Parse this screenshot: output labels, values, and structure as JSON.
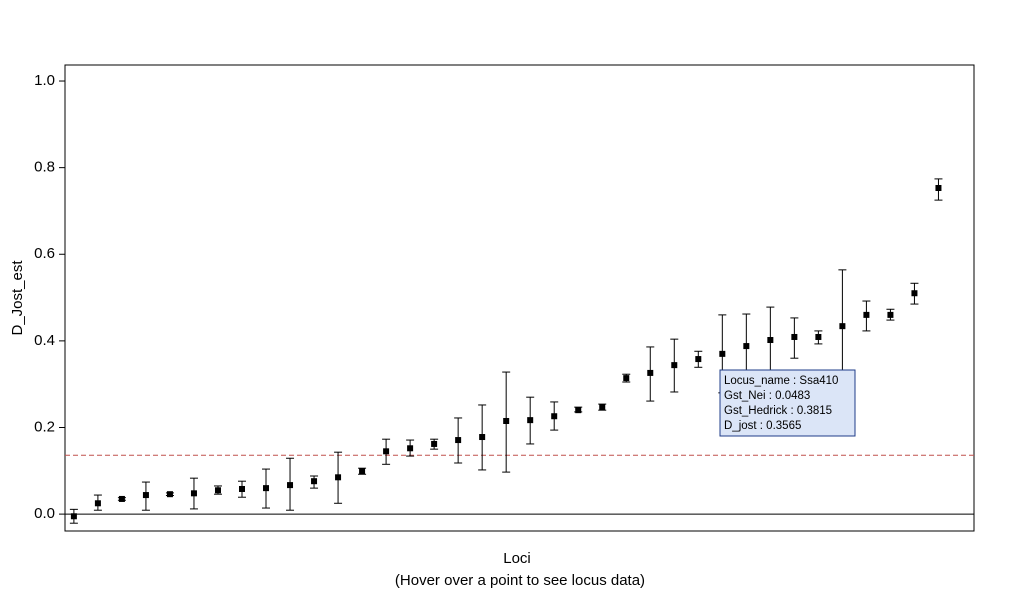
{
  "chart_data": {
    "type": "errorbar",
    "y_label": "D_Jost_est",
    "x_label": "Loci",
    "x_sublabel": "(Hover over a point to see locus data)",
    "xlim": [
      0.63,
      38.48
    ],
    "ylim": [
      -0.039,
      1.037
    ],
    "yticks": [
      {
        "value": 0,
        "label": "0.0"
      },
      {
        "value": 0.2,
        "label": "0.2"
      },
      {
        "value": 0.4,
        "label": "0.4"
      },
      {
        "value": 0.6,
        "label": "0.6"
      },
      {
        "value": 0.8,
        "label": "0.8"
      },
      {
        "value": 1,
        "label": "1.0"
      }
    ],
    "reference_line": {
      "value": 0.136,
      "color": "#c0504d"
    },
    "zero_line": {
      "value": 0
    },
    "x": [
      1,
      2,
      3,
      4,
      5,
      6,
      7,
      8,
      9,
      10,
      11,
      12,
      13,
      14,
      15,
      16,
      17,
      18,
      19,
      20,
      21,
      22,
      23,
      24,
      25,
      26,
      27,
      28,
      29,
      30,
      31,
      32,
      33,
      34,
      35,
      36,
      37
    ],
    "series": [
      {
        "color": "#000000",
        "values": [
          -0.005,
          0.025,
          0.035,
          0.044,
          0.046,
          0.048,
          0.055,
          0.058,
          0.06,
          0.067,
          0.076,
          0.085,
          0.099,
          0.145,
          0.152,
          0.162,
          0.171,
          0.178,
          0.215,
          0.217,
          0.226,
          0.24,
          0.247,
          0.314,
          0.326,
          0.344,
          0.358,
          0.37,
          0.388,
          0.402,
          0.409,
          0.409,
          0.434,
          0.46,
          0.46,
          0.51,
          0.753
        ],
        "lower": [
          -0.021,
          0.009,
          0.032,
          0.009,
          0.043,
          0.012,
          0.046,
          0.039,
          0.014,
          0.009,
          0.06,
          0.025,
          0.092,
          0.115,
          0.134,
          0.15,
          0.118,
          0.102,
          0.097,
          0.162,
          0.194,
          0.236,
          0.24,
          0.305,
          0.261,
          0.282,
          0.339,
          0.28,
          0.314,
          0.326,
          0.36,
          0.393,
          0.304,
          0.423,
          0.448,
          0.485,
          0.725
        ],
        "upper": [
          0.011,
          0.044,
          0.038,
          0.074,
          0.049,
          0.083,
          0.065,
          0.076,
          0.104,
          0.129,
          0.088,
          0.143,
          0.106,
          0.173,
          0.171,
          0.173,
          0.222,
          0.252,
          0.328,
          0.27,
          0.259,
          0.247,
          0.254,
          0.323,
          0.386,
          0.404,
          0.376,
          0.46,
          0.462,
          0.478,
          0.453,
          0.423,
          0.564,
          0.492,
          0.473,
          0.533,
          0.774
        ]
      }
    ],
    "tooltip": {
      "lines": [
        "Locus_name  : Ssa410",
        "Gst_Nei  :  0.0483",
        "Gst_Hedrick  :  0.3815",
        "D_jost  :  0.3565"
      ]
    }
  }
}
